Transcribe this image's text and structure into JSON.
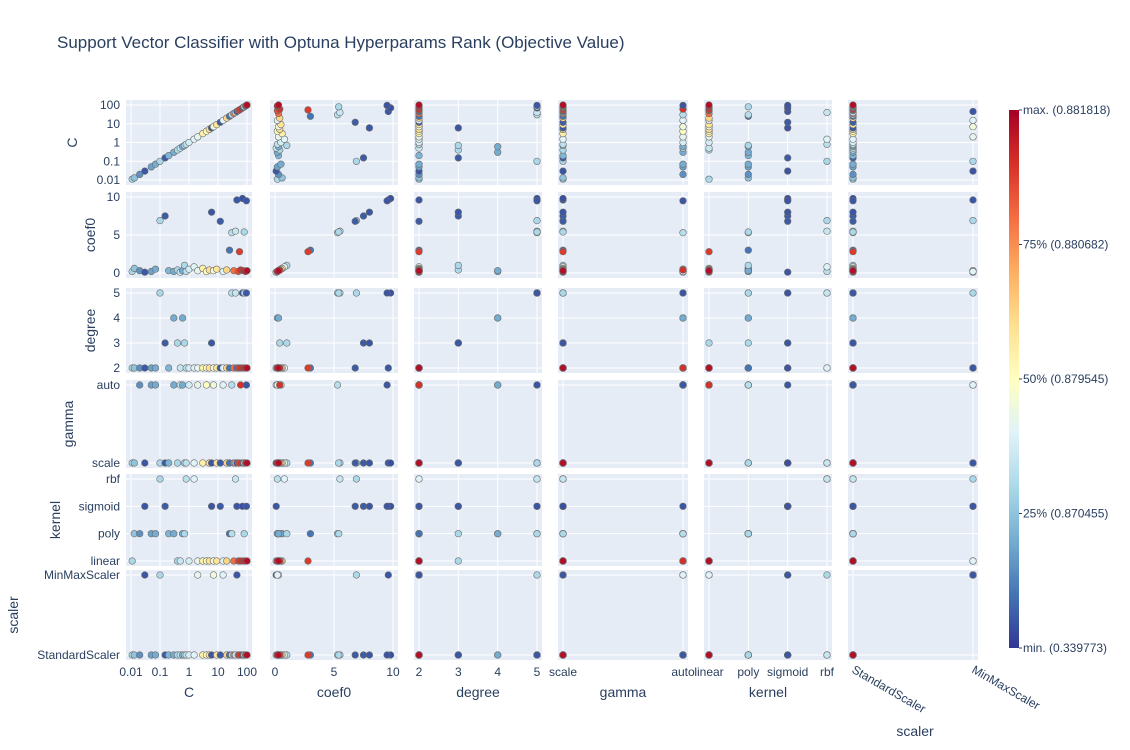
{
  "chart_data": {
    "type": "scatter",
    "subtype": "scatter-matrix",
    "title": "Support Vector Classifier with Optuna Hyperparams Rank (Objective Value)",
    "params": [
      {
        "name": "C",
        "kind": "log",
        "range": [
          0.01,
          100
        ],
        "tick_values": [
          0.01,
          0.1,
          1,
          10,
          100
        ],
        "tick_labels": [
          "0.01",
          "0.1",
          "1",
          "10",
          "100"
        ]
      },
      {
        "name": "coef0",
        "kind": "linear",
        "range": [
          0,
          10
        ],
        "tick_values": [
          0,
          5,
          10
        ],
        "tick_labels": [
          "0",
          "5",
          "10"
        ]
      },
      {
        "name": "degree",
        "kind": "linear",
        "range": [
          2,
          5
        ],
        "tick_values": [
          2,
          3,
          4,
          5
        ],
        "tick_labels": [
          "2",
          "3",
          "4",
          "5"
        ]
      },
      {
        "name": "gamma",
        "kind": "category",
        "categories": [
          "scale",
          "auto"
        ]
      },
      {
        "name": "kernel",
        "kind": "category",
        "categories": [
          "linear",
          "poly",
          "sigmoid",
          "rbf"
        ]
      },
      {
        "name": "scaler",
        "kind": "category",
        "categories": [
          "StandardScaler",
          "MinMaxScaler"
        ]
      }
    ],
    "colorbar": {
      "colorscale": "RdYlBu_r",
      "colors": [
        "#313695",
        "#4575b4",
        "#74add1",
        "#abd9e9",
        "#e0f3f8",
        "#ffffbf",
        "#fee090",
        "#fdae61",
        "#f46d43",
        "#d73027",
        "#a50026"
      ],
      "ticks": [
        {
          "frac": 1.0,
          "label": "max. (0.881818)"
        },
        {
          "frac": 0.75,
          "label": "75% (0.880682)"
        },
        {
          "frac": 0.5,
          "label": "50% (0.879545)"
        },
        {
          "frac": 0.25,
          "label": "25% (0.870455)"
        },
        {
          "frac": 0.0,
          "label": "min. (0.339773)"
        }
      ]
    },
    "colors": {
      "plot_bg": "#e5ecf6",
      "grid": "#ffffff",
      "text": "#2a3f5f",
      "marker_edge": "#6b6b6b"
    },
    "trials": [
      {
        "C": 0.011,
        "coef0": 0.2,
        "degree": 2,
        "gamma": "scale",
        "kernel": "linear",
        "scaler": "StandardScaler",
        "rank": 0.3
      },
      {
        "C": 0.013,
        "coef0": 0.6,
        "degree": 2,
        "gamma": "scale",
        "kernel": "poly",
        "scaler": "StandardScaler",
        "rank": 0.25
      },
      {
        "C": 0.02,
        "coef0": 0.3,
        "degree": 2,
        "gamma": "auto",
        "kernel": "poly",
        "scaler": "StandardScaler",
        "rank": 0.15
      },
      {
        "C": 0.03,
        "coef0": 0.1,
        "degree": 2,
        "gamma": "scale",
        "kernel": "sigmoid",
        "scaler": "MinMaxScaler",
        "rank": 0.05
      },
      {
        "C": 0.05,
        "coef0": 0.2,
        "degree": 2,
        "gamma": "auto",
        "kernel": "poly",
        "scaler": "StandardScaler",
        "rank": 0.18
      },
      {
        "C": 0.07,
        "coef0": 0.5,
        "degree": 2,
        "gamma": "auto",
        "kernel": "poly",
        "scaler": "StandardScaler",
        "rank": 0.2
      },
      {
        "C": 0.1,
        "coef0": 6.9,
        "degree": 5,
        "gamma": "scale",
        "kernel": "rbf",
        "scaler": "MinMaxScaler",
        "rank": 0.3
      },
      {
        "C": 0.15,
        "coef0": 7.5,
        "degree": 3,
        "gamma": "scale",
        "kernel": "sigmoid",
        "scaler": "StandardScaler",
        "rank": 0.06
      },
      {
        "C": 0.2,
        "coef0": 0.3,
        "degree": 2,
        "gamma": "scale",
        "kernel": "poly",
        "scaler": "StandardScaler",
        "rank": 0.22
      },
      {
        "C": 0.3,
        "coef0": 0.2,
        "degree": 4,
        "gamma": "auto",
        "kernel": "poly",
        "scaler": "StandardScaler",
        "rank": 0.2
      },
      {
        "C": 0.4,
        "coef0": 0.4,
        "degree": 3,
        "gamma": "scale",
        "kernel": "linear",
        "scaler": "StandardScaler",
        "rank": 0.3
      },
      {
        "C": 0.5,
        "coef0": 0.1,
        "degree": 2,
        "gamma": "auto",
        "kernel": "linear",
        "scaler": "StandardScaler",
        "rank": 0.35
      },
      {
        "C": 0.6,
        "coef0": 0.3,
        "degree": 4,
        "gamma": "auto",
        "kernel": "poly",
        "scaler": "StandardScaler",
        "rank": 0.2
      },
      {
        "C": 0.7,
        "coef0": 1.0,
        "degree": 3,
        "gamma": "scale",
        "kernel": "poly",
        "scaler": "StandardScaler",
        "rank": 0.3
      },
      {
        "C": 0.8,
        "coef0": 0.2,
        "degree": 2,
        "gamma": "scale",
        "kernel": "rbf",
        "scaler": "StandardScaler",
        "rank": 0.33
      },
      {
        "C": 1.0,
        "coef0": 0.5,
        "degree": 2,
        "gamma": "auto",
        "kernel": "linear",
        "scaler": "StandardScaler",
        "rank": 0.38
      },
      {
        "C": 1.5,
        "coef0": 0.8,
        "degree": 2,
        "gamma": "scale",
        "kernel": "rbf",
        "scaler": "StandardScaler",
        "rank": 0.4
      },
      {
        "C": 2.0,
        "coef0": 0.3,
        "degree": 2,
        "gamma": "auto",
        "kernel": "linear",
        "scaler": "MinMaxScaler",
        "rank": 0.42
      },
      {
        "C": 3.0,
        "coef0": 0.6,
        "degree": 2,
        "gamma": "scale",
        "kernel": "linear",
        "scaler": "StandardScaler",
        "rank": 0.55
      },
      {
        "C": 4.0,
        "coef0": 0.2,
        "degree": 2,
        "gamma": "auto",
        "kernel": "linear",
        "scaler": "StandardScaler",
        "rank": 0.5
      },
      {
        "C": 5.0,
        "coef0": 0.4,
        "degree": 2,
        "gamma": "scale",
        "kernel": "linear",
        "scaler": "StandardScaler",
        "rank": 0.6
      },
      {
        "C": 6.0,
        "coef0": 8.0,
        "degree": 3,
        "gamma": "scale",
        "kernel": "sigmoid",
        "scaler": "StandardScaler",
        "rank": 0.05
      },
      {
        "C": 7.0,
        "coef0": 0.3,
        "degree": 2,
        "gamma": "auto",
        "kernel": "linear",
        "scaler": "MinMaxScaler",
        "rank": 0.45
      },
      {
        "C": 9.0,
        "coef0": 0.5,
        "degree": 2,
        "gamma": "scale",
        "kernel": "linear",
        "scaler": "StandardScaler",
        "rank": 0.58
      },
      {
        "C": 12.0,
        "coef0": 6.8,
        "degree": 2,
        "gamma": "scale",
        "kernel": "sigmoid",
        "scaler": "StandardScaler",
        "rank": 0.06
      },
      {
        "C": 15.0,
        "coef0": 0.2,
        "degree": 2,
        "gamma": "auto",
        "kernel": "linear",
        "scaler": "MinMaxScaler",
        "rank": 0.4
      },
      {
        "C": 20.0,
        "coef0": 0.4,
        "degree": 2,
        "gamma": "scale",
        "kernel": "linear",
        "scaler": "StandardScaler",
        "rank": 0.62
      },
      {
        "C": 25.0,
        "coef0": 3.0,
        "degree": 2,
        "gamma": "scale",
        "kernel": "poly",
        "scaler": "StandardScaler",
        "rank": 0.1
      },
      {
        "C": 30.0,
        "coef0": 5.3,
        "degree": 5,
        "gamma": "auto",
        "kernel": "poly",
        "scaler": "StandardScaler",
        "rank": 0.32
      },
      {
        "C": 35.0,
        "coef0": 0.3,
        "degree": 2,
        "gamma": "scale",
        "kernel": "linear",
        "scaler": "StandardScaler",
        "rank": 0.8
      },
      {
        "C": 40.0,
        "coef0": 5.5,
        "degree": 5,
        "gamma": "scale",
        "kernel": "rbf",
        "scaler": "StandardScaler",
        "rank": 0.35
      },
      {
        "C": 45.0,
        "coef0": 9.6,
        "degree": 2,
        "gamma": "scale",
        "kernel": "sigmoid",
        "scaler": "MinMaxScaler",
        "rank": 0.05
      },
      {
        "C": 50.0,
        "coef0": 0.2,
        "degree": 2,
        "gamma": "scale",
        "kernel": "linear",
        "scaler": "StandardScaler",
        "rank": 0.85
      },
      {
        "C": 55.0,
        "coef0": 2.8,
        "degree": 2,
        "gamma": "scale",
        "kernel": "linear",
        "scaler": "StandardScaler",
        "rank": 0.88
      },
      {
        "C": 60.0,
        "coef0": 0.4,
        "degree": 2,
        "gamma": "auto",
        "kernel": "linear",
        "scaler": "StandardScaler",
        "rank": 0.9
      },
      {
        "C": 70.0,
        "coef0": 9.8,
        "degree": 5,
        "gamma": "scale",
        "kernel": "sigmoid",
        "scaler": "StandardScaler",
        "rank": 0.04
      },
      {
        "C": 75.0,
        "coef0": 0.3,
        "degree": 2,
        "gamma": "scale",
        "kernel": "linear",
        "scaler": "StandardScaler",
        "rank": 0.92
      },
      {
        "C": 80.0,
        "coef0": 5.4,
        "degree": 5,
        "gamma": "scale",
        "kernel": "poly",
        "scaler": "StandardScaler",
        "rank": 0.3
      },
      {
        "C": 90.0,
        "coef0": 0.2,
        "degree": 2,
        "gamma": "scale",
        "kernel": "linear",
        "scaler": "StandardScaler",
        "rank": 0.95
      },
      {
        "C": 95.0,
        "coef0": 9.5,
        "degree": 5,
        "gamma": "auto",
        "kernel": "sigmoid",
        "scaler": "StandardScaler",
        "rank": 0.05
      },
      {
        "C": 100.0,
        "coef0": 0.3,
        "degree": 2,
        "gamma": "scale",
        "kernel": "linear",
        "scaler": "StandardScaler",
        "rank": 0.97
      }
    ]
  }
}
